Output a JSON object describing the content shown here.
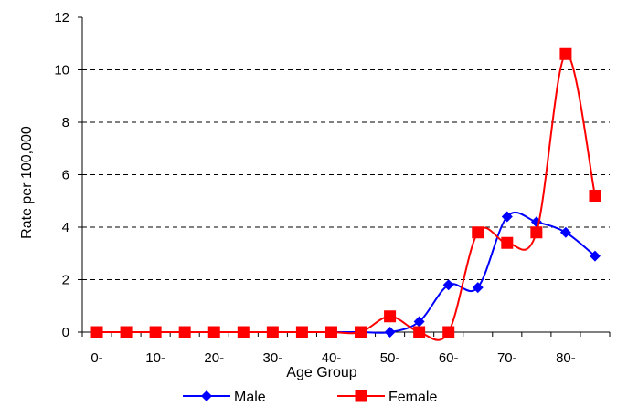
{
  "chart_data": {
    "type": "line",
    "title": "",
    "xlabel": "Age Group",
    "ylabel": "Rate per 100,000",
    "ylim": [
      0,
      12
    ],
    "yticks": [
      "0",
      "2",
      "4",
      "6",
      "8",
      "10",
      "12"
    ],
    "grid": "horizontal dashed",
    "legend_position": "bottom",
    "x": [
      "0-",
      "5-",
      "10-",
      "15-",
      "20-",
      "25-",
      "30-",
      "35-",
      "40-",
      "45-",
      "50-",
      "55-",
      "60-",
      "65-",
      "70-",
      "75-",
      "80-",
      "85-"
    ],
    "x_tick_labels_shown": [
      "0-",
      "10-",
      "20-",
      "30-",
      "40-",
      "50-",
      "60-",
      "70-",
      "80-"
    ],
    "series": [
      {
        "name": "Male",
        "color": "#0000ff",
        "marker": "diamond",
        "values": [
          0,
          0,
          0,
          0,
          0,
          0,
          0,
          0,
          0,
          0,
          0,
          0.4,
          1.8,
          1.7,
          4.4,
          4.2,
          3.8,
          2.9
        ]
      },
      {
        "name": "Female",
        "color": "#ff0000",
        "marker": "square",
        "values": [
          0,
          0,
          0,
          0,
          0,
          0,
          0,
          0,
          0,
          0,
          0.6,
          0,
          0,
          3.8,
          3.4,
          3.8,
          10.6,
          5.2
        ]
      }
    ]
  }
}
